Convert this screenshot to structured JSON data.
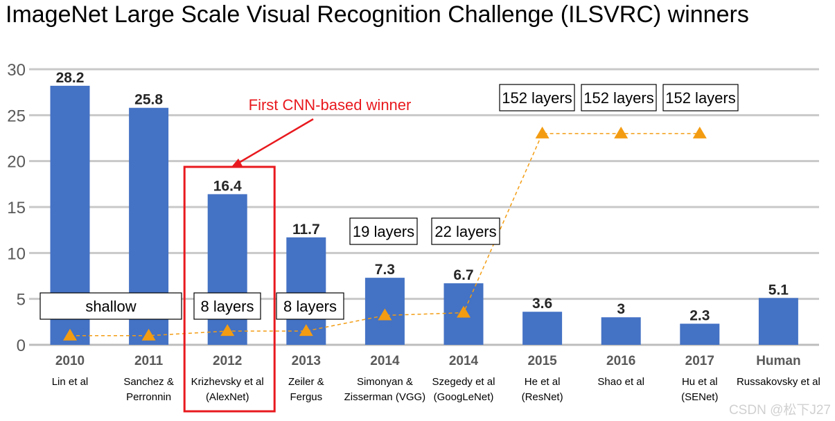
{
  "title": "ImageNet Large Scale Visual Recognition Challenge (ILSVRC) winners",
  "watermark": "CSDN @松下J27",
  "chart_data": {
    "type": "bar",
    "categories": [
      "2010",
      "2011",
      "2012",
      "2013",
      "2014",
      "2014",
      "2015",
      "2016",
      "2017",
      "Human"
    ],
    "authors": [
      [
        "Lin et al"
      ],
      [
        "Sanchez &",
        "Perronnin"
      ],
      [
        "Krizhevsky et al",
        "(AlexNet)"
      ],
      [
        "Zeiler &",
        "Fergus"
      ],
      [
        "Simonyan &",
        "Zisserman (VGG)"
      ],
      [
        "Szegedy et al",
        "(GoogLeNet)"
      ],
      [
        "He et al",
        "(ResNet)"
      ],
      [
        "Shao et al"
      ],
      [
        "Hu et al",
        "(SENet)"
      ],
      [
        "Russakovsky et al"
      ]
    ],
    "values": [
      28.2,
      25.8,
      16.4,
      11.7,
      7.3,
      6.7,
      3.6,
      3,
      2.3,
      5.1
    ],
    "value_labels": [
      "28.2",
      "25.8",
      "16.4",
      "11.7",
      "7.3",
      "6.7",
      "3.6",
      "3",
      "2.3",
      "5.1"
    ],
    "ylim": [
      0,
      30
    ],
    "yticks": [
      0,
      5,
      10,
      15,
      20,
      25,
      30
    ],
    "grid": true,
    "bar_color": "#4472C4",
    "depth_series": {
      "color": "#F39C12",
      "values": [
        1,
        1,
        1.5,
        1.5,
        3.2,
        3.5,
        23,
        23,
        23
      ]
    },
    "layer_labels": [
      {
        "text": "shallow",
        "index": 0
      },
      {
        "text": "8 layers",
        "index": 2
      },
      {
        "text": "8 layers",
        "index": 3
      },
      {
        "text": "19 layers",
        "index": 4
      },
      {
        "text": "22 layers",
        "index": 5
      },
      {
        "text": "152 layers",
        "index": 6
      },
      {
        "text": "152 layers",
        "index": 7
      },
      {
        "text": "152 layers",
        "index": 8
      }
    ],
    "annotation": {
      "text": "First CNN-based winner",
      "index": 2,
      "color": "#E8191E"
    }
  }
}
